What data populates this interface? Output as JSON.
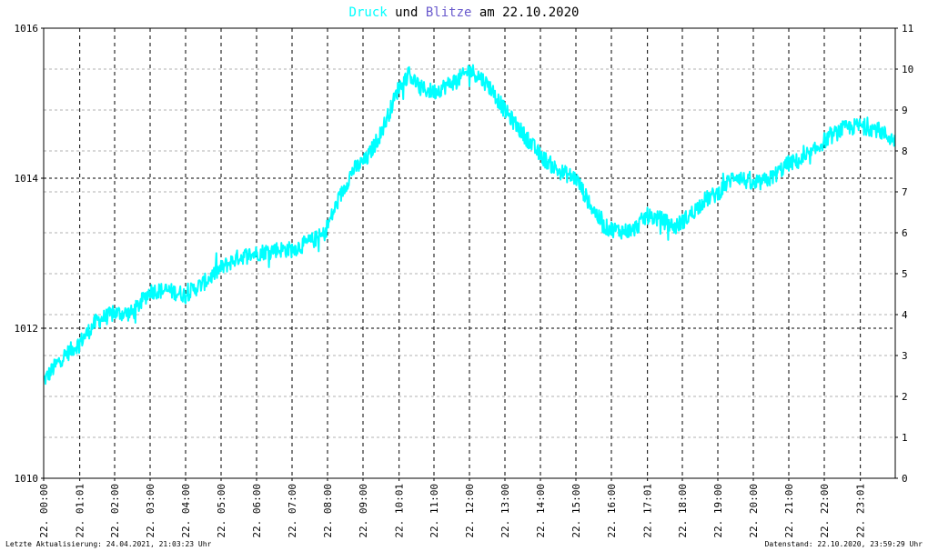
{
  "chart_data": {
    "type": "line",
    "title": {
      "part1": "Druck",
      "part2": "und",
      "part3": "Blitze",
      "part4": "am 22.10.2020"
    },
    "colors": {
      "druck": "#00ffff",
      "blitze": "#6a5acd",
      "text": "#000000",
      "grid": "#000000",
      "minor_grid": "#b0b0b0",
      "frame": "#808080"
    },
    "x_ticks": [
      "22. 00:00",
      "22. 01:01",
      "22. 02:00",
      "22. 03:00",
      "22. 04:00",
      "22. 05:00",
      "22. 06:00",
      "22. 07:00",
      "22. 08:00",
      "22. 09:00",
      "22. 10:01",
      "22. 11:00",
      "22. 12:00",
      "22. 13:00",
      "22. 14:00",
      "22. 15:00",
      "22. 16:00",
      "22. 17:01",
      "22. 18:00",
      "22. 19:00",
      "22. 20:00",
      "22. 21:00",
      "22. 22:00",
      "22. 23:01"
    ],
    "x_tick_hours": [
      0,
      1.017,
      2,
      3,
      4,
      5,
      6,
      7,
      8,
      9,
      10.017,
      11,
      12,
      13,
      14,
      15,
      16,
      17.017,
      18,
      19,
      20,
      21,
      22,
      23.017
    ],
    "x_range_hours": [
      0,
      24
    ],
    "y_left": {
      "ticks": [
        "1010",
        "1012",
        "1014",
        "1016"
      ],
      "range": [
        1010,
        1016
      ]
    },
    "y_right": {
      "ticks": [
        "0",
        "1",
        "2",
        "3",
        "4",
        "5",
        "6",
        "7",
        "8",
        "9",
        "10",
        "11"
      ],
      "range": [
        0,
        11
      ]
    },
    "grid": true,
    "series": [
      {
        "name": "Druck",
        "hours": [
          0,
          0.5,
          1,
          1.5,
          2,
          2.5,
          3,
          3.5,
          4,
          4.5,
          5,
          5.5,
          6,
          6.5,
          7,
          7.5,
          7.9,
          8.3,
          8.7,
          9.1,
          9.5,
          9.8,
          10,
          10.3,
          10.6,
          11,
          11.4,
          11.8,
          12,
          12.3,
          12.6,
          13,
          13.5,
          14,
          14.5,
          15,
          15.4,
          15.8,
          16.2,
          16.6,
          17,
          17.4,
          17.8,
          18.2,
          18.6,
          19,
          19.5,
          20,
          20.5,
          21,
          21.5,
          22,
          22.5,
          23,
          23.5,
          23.99
        ],
        "values": [
          1011.3,
          1011.6,
          1011.8,
          1012.1,
          1012.2,
          1012.2,
          1012.5,
          1012.5,
          1012.45,
          1012.6,
          1012.8,
          1012.95,
          1013.0,
          1013.05,
          1013.05,
          1013.15,
          1013.25,
          1013.7,
          1014.1,
          1014.25,
          1014.6,
          1014.95,
          1015.2,
          1015.4,
          1015.2,
          1015.15,
          1015.25,
          1015.35,
          1015.45,
          1015.35,
          1015.2,
          1014.9,
          1014.6,
          1014.3,
          1014.1,
          1014.0,
          1013.65,
          1013.35,
          1013.3,
          1013.3,
          1013.5,
          1013.45,
          1013.35,
          1013.5,
          1013.7,
          1013.8,
          1014.05,
          1013.9,
          1014.0,
          1014.2,
          1014.25,
          1014.5,
          1014.65,
          1014.7,
          1014.65,
          1014.5
        ]
      }
    ]
  },
  "footer": {
    "left": "Letzte Aktualisierung: 24.04.2021, 21:03:23 Uhr",
    "right": "Datenstand: 22.10.2020, 23:59:29 Uhr"
  }
}
